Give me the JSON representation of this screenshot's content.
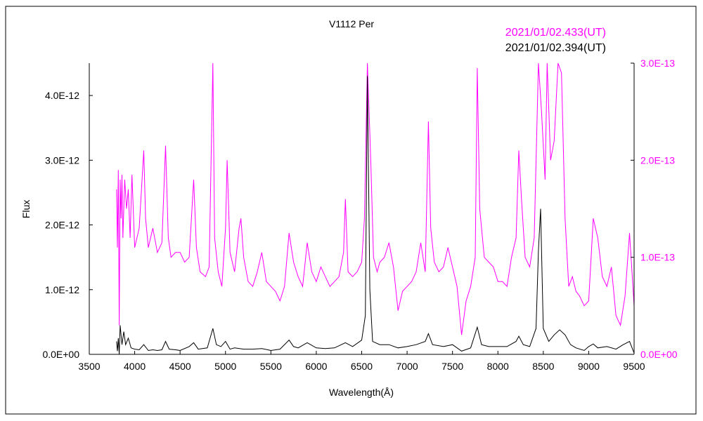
{
  "chart_data": {
    "type": "line",
    "title": "V1112 Per",
    "xlabel": "Wavelength(Å)",
    "ylabel": "Flux",
    "xlim": [
      3500,
      9500
    ],
    "ylim_left": [
      0,
      4.5e-12
    ],
    "ylim_right": [
      0,
      3e-13
    ],
    "x_ticks": [
      "3500",
      "4000",
      "4500",
      "5000",
      "5500",
      "6000",
      "6500",
      "7000",
      "7500",
      "8000",
      "8500",
      "9000",
      "9500"
    ],
    "y_ticks_left": [
      "0.0E+00",
      "1.0E-12",
      "2.0E-12",
      "3.0E-12",
      "4.0E-12"
    ],
    "y_ticks_right": [
      "0.0E+00",
      "1.0E-13",
      "2.0E-13",
      "3.0E-13"
    ],
    "grid": false,
    "legend_position": "top-right",
    "colors": {
      "series1": "#ff00ff",
      "series2": "#000000",
      "axis": "#000000"
    },
    "series": [
      {
        "name": "2021/01/02.433(UT)",
        "axis": "right",
        "color": "#ff00ff",
        "points": [
          [
            3800,
            1.7e-13
          ],
          [
            3810,
            1.1e-13
          ],
          [
            3820,
            1.9e-13
          ],
          [
            3830,
            3e-14
          ],
          [
            3840,
            1.8e-13
          ],
          [
            3850,
            1.4e-13
          ],
          [
            3860,
            1.85e-13
          ],
          [
            3870,
            1.2e-13
          ],
          [
            3890,
            1.8e-13
          ],
          [
            3910,
            1.5e-13
          ],
          [
            3930,
            1.7e-13
          ],
          [
            3950,
            1.2e-13
          ],
          [
            3970,
            1.85e-13
          ],
          [
            4000,
            1.1e-13
          ],
          [
            4050,
            1.3e-13
          ],
          [
            4100,
            2.1e-13
          ],
          [
            4120,
            1.4e-13
          ],
          [
            4150,
            1.1e-13
          ],
          [
            4200,
            1.3e-13
          ],
          [
            4250,
            1.05e-13
          ],
          [
            4300,
            1.15e-13
          ],
          [
            4340,
            2.15e-13
          ],
          [
            4370,
            1.2e-13
          ],
          [
            4400,
            1e-13
          ],
          [
            4450,
            1.05e-13
          ],
          [
            4500,
            1.05e-13
          ],
          [
            4550,
            9.5e-14
          ],
          [
            4600,
            1e-13
          ],
          [
            4650,
            1.8e-13
          ],
          [
            4680,
            1.1e-13
          ],
          [
            4720,
            8.5e-14
          ],
          [
            4780,
            8e-14
          ],
          [
            4820,
            9e-14
          ],
          [
            4861,
            3e-13
          ],
          [
            4880,
            1.2e-13
          ],
          [
            4920,
            8.5e-14
          ],
          [
            4960,
            7e-14
          ],
          [
            5000,
            1.3e-13
          ],
          [
            5018,
            2e-13
          ],
          [
            5050,
            1.05e-13
          ],
          [
            5100,
            8.5e-14
          ],
          [
            5150,
            1.3e-13
          ],
          [
            5170,
            1.4e-13
          ],
          [
            5200,
            1e-13
          ],
          [
            5250,
            7.5e-14
          ],
          [
            5300,
            7e-14
          ],
          [
            5350,
            8.5e-14
          ],
          [
            5400,
            1.05e-13
          ],
          [
            5450,
            7.5e-14
          ],
          [
            5500,
            7e-14
          ],
          [
            5550,
            6.5e-14
          ],
          [
            5600,
            5.5e-14
          ],
          [
            5650,
            7e-14
          ],
          [
            5700,
            1.25e-13
          ],
          [
            5750,
            9.5e-14
          ],
          [
            5800,
            8e-14
          ],
          [
            5850,
            7e-14
          ],
          [
            5900,
            1.15e-13
          ],
          [
            5950,
            8.5e-14
          ],
          [
            6000,
            7.5e-14
          ],
          [
            6050,
            9e-14
          ],
          [
            6100,
            8e-14
          ],
          [
            6150,
            7e-14
          ],
          [
            6200,
            7.5e-14
          ],
          [
            6250,
            8e-14
          ],
          [
            6300,
            1.05e-13
          ],
          [
            6320,
            1.6e-13
          ],
          [
            6350,
            8.5e-14
          ],
          [
            6400,
            8e-14
          ],
          [
            6450,
            8.5e-14
          ],
          [
            6500,
            9.5e-14
          ],
          [
            6530,
            1.4e-13
          ],
          [
            6563,
            3e-13
          ],
          [
            6600,
            2e-13
          ],
          [
            6630,
            1e-13
          ],
          [
            6670,
            8.5e-14
          ],
          [
            6700,
            9.5e-14
          ],
          [
            6750,
            1e-13
          ],
          [
            6800,
            1.15e-13
          ],
          [
            6850,
            9e-14
          ],
          [
            6900,
            4.5e-14
          ],
          [
            6950,
            6.5e-14
          ],
          [
            7000,
            7e-14
          ],
          [
            7050,
            7.5e-14
          ],
          [
            7100,
            8.5e-14
          ],
          [
            7150,
            1.15e-13
          ],
          [
            7200,
            8.5e-14
          ],
          [
            7235,
            2.4e-13
          ],
          [
            7260,
            1.3e-13
          ],
          [
            7300,
            9.5e-14
          ],
          [
            7350,
            8.5e-14
          ],
          [
            7400,
            9e-14
          ],
          [
            7450,
            1.1e-13
          ],
          [
            7500,
            9e-14
          ],
          [
            7550,
            7e-14
          ],
          [
            7600,
            2e-14
          ],
          [
            7650,
            5.5e-14
          ],
          [
            7700,
            7e-14
          ],
          [
            7750,
            1e-13
          ],
          [
            7773,
            2.95e-13
          ],
          [
            7800,
            1.5e-13
          ],
          [
            7850,
            1e-13
          ],
          [
            7900,
            9.5e-14
          ],
          [
            7950,
            9e-14
          ],
          [
            8000,
            7.5e-14
          ],
          [
            8050,
            7.5e-14
          ],
          [
            8100,
            7e-14
          ],
          [
            8150,
            1e-13
          ],
          [
            8200,
            1.2e-13
          ],
          [
            8230,
            2.1e-13
          ],
          [
            8260,
            1.6e-13
          ],
          [
            8300,
            1e-13
          ],
          [
            8350,
            9e-14
          ],
          [
            8400,
            1.2e-13
          ],
          [
            8446,
            3e-13
          ],
          [
            8480,
            2.5e-13
          ],
          [
            8520,
            1.8e-13
          ],
          [
            8542,
            3e-13
          ],
          [
            8580,
            2e-13
          ],
          [
            8620,
            2.2e-13
          ],
          [
            8662,
            3e-13
          ],
          [
            8700,
            2.9e-13
          ],
          [
            8740,
            1.4e-13
          ],
          [
            8780,
            7e-14
          ],
          [
            8820,
            8e-14
          ],
          [
            8860,
            6.5e-14
          ],
          [
            8900,
            6e-14
          ],
          [
            8950,
            5e-14
          ],
          [
            9000,
            5.5e-14
          ],
          [
            9050,
            1.4e-13
          ],
          [
            9100,
            1.2e-13
          ],
          [
            9150,
            8e-14
          ],
          [
            9200,
            7e-14
          ],
          [
            9250,
            9e-14
          ],
          [
            9300,
            4e-14
          ],
          [
            9350,
            3e-14
          ],
          [
            9400,
            6e-14
          ],
          [
            9450,
            1.25e-13
          ],
          [
            9500,
            5e-14
          ]
        ]
      },
      {
        "name": "2021/01/02.394(UT)",
        "axis": "left",
        "color": "#000000",
        "points": [
          [
            3800,
            2e-13
          ],
          [
            3810,
            5e-14
          ],
          [
            3820,
            2.5e-13
          ],
          [
            3830,
            0.0
          ],
          [
            3840,
            4.5e-13
          ],
          [
            3860,
            1.5e-13
          ],
          [
            3880,
            3.5e-13
          ],
          [
            3900,
            1.5e-13
          ],
          [
            3930,
            2.5e-13
          ],
          [
            3960,
            1e-13
          ],
          [
            4000,
            8e-14
          ],
          [
            4050,
            7e-14
          ],
          [
            4100,
            1.5e-13
          ],
          [
            4150,
            6e-14
          ],
          [
            4200,
            7e-14
          ],
          [
            4250,
            6e-14
          ],
          [
            4300,
            7e-14
          ],
          [
            4340,
            2e-13
          ],
          [
            4380,
            8e-14
          ],
          [
            4450,
            7e-14
          ],
          [
            4500,
            6e-14
          ],
          [
            4600,
            1.2e-13
          ],
          [
            4650,
            1.8e-13
          ],
          [
            4700,
            8e-14
          ],
          [
            4800,
            1e-13
          ],
          [
            4861,
            4e-13
          ],
          [
            4900,
            1.5e-13
          ],
          [
            4950,
            1.2e-13
          ],
          [
            5000,
            2e-13
          ],
          [
            5050,
            8e-14
          ],
          [
            5100,
            1e-13
          ],
          [
            5200,
            8e-14
          ],
          [
            5300,
            8e-14
          ],
          [
            5400,
            9e-14
          ],
          [
            5500,
            6e-14
          ],
          [
            5600,
            8e-14
          ],
          [
            5700,
            2.2e-13
          ],
          [
            5750,
            1.2e-13
          ],
          [
            5800,
            1e-13
          ],
          [
            5900,
            1.8e-13
          ],
          [
            6000,
            1e-13
          ],
          [
            6100,
            9e-14
          ],
          [
            6200,
            1e-13
          ],
          [
            6320,
            1.8e-13
          ],
          [
            6400,
            1.2e-13
          ],
          [
            6500,
            2.2e-13
          ],
          [
            6540,
            6e-13
          ],
          [
            6563,
            4.3e-12
          ],
          [
            6590,
            1e-12
          ],
          [
            6620,
            2e-13
          ],
          [
            6700,
            1.5e-13
          ],
          [
            6800,
            1.5e-13
          ],
          [
            6900,
            1e-13
          ],
          [
            7000,
            1.2e-13
          ],
          [
            7100,
            1.5e-13
          ],
          [
            7200,
            2e-13
          ],
          [
            7235,
            3.2e-13
          ],
          [
            7280,
            1.5e-13
          ],
          [
            7400,
            1.2e-13
          ],
          [
            7500,
            1.5e-13
          ],
          [
            7600,
            5e-14
          ],
          [
            7700,
            1e-13
          ],
          [
            7773,
            4.2e-13
          ],
          [
            7820,
            1.5e-13
          ],
          [
            7900,
            1.2e-13
          ],
          [
            8000,
            1.2e-13
          ],
          [
            8100,
            1.2e-13
          ],
          [
            8200,
            2e-13
          ],
          [
            8230,
            2.8e-13
          ],
          [
            8280,
            1.5e-13
          ],
          [
            8350,
            1.2e-13
          ],
          [
            8420,
            4e-13
          ],
          [
            8446,
            1.6e-12
          ],
          [
            8470,
            2.25e-12
          ],
          [
            8500,
            4e-13
          ],
          [
            8560,
            2e-13
          ],
          [
            8620,
            3e-13
          ],
          [
            8680,
            3.8e-13
          ],
          [
            8740,
            3e-13
          ],
          [
            8800,
            1.5e-13
          ],
          [
            8860,
            1e-13
          ],
          [
            8950,
            6e-14
          ],
          [
            9000,
            1.2e-13
          ],
          [
            9050,
            1.6e-13
          ],
          [
            9100,
            1e-13
          ],
          [
            9200,
            1.2e-13
          ],
          [
            9300,
            8e-14
          ],
          [
            9380,
            1.5e-13
          ],
          [
            9450,
            2e-13
          ],
          [
            9500,
            2e-14
          ]
        ]
      }
    ]
  }
}
